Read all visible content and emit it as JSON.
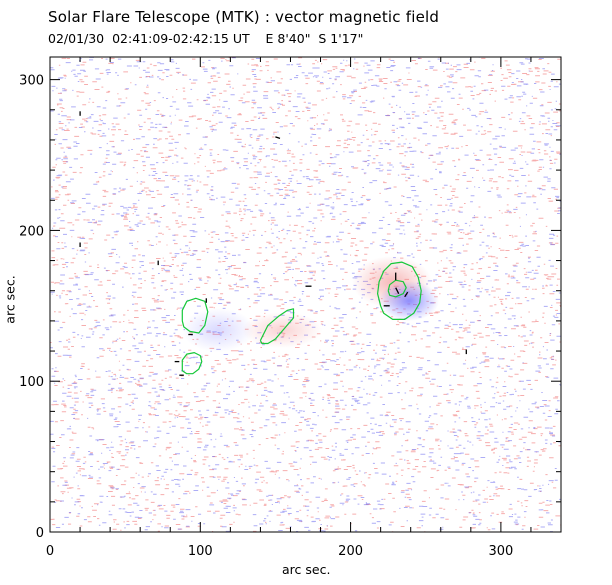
{
  "header": {
    "title": "Solar Flare Telescope (MTK) : vector magnetic field",
    "subtitle": "02/01/30  02:41:09-02:42:15 UT    E 8'40\"  S 1'17\""
  },
  "axes": {
    "xlabel": "arc sec.",
    "ylabel": "arc sec.",
    "xlim": [
      0,
      340
    ],
    "ylim": [
      0,
      315
    ],
    "xticks": [
      0,
      100,
      200,
      300
    ],
    "yticks": [
      0,
      100,
      200,
      300
    ]
  },
  "map": {
    "positive_color": "#ef6a6a",
    "negative_color": "#6a6aef",
    "contour_color": "#16c83a",
    "vector_color": "#000000"
  },
  "contours": [
    {
      "name": "sunspot-ring",
      "points": [
        [
          220,
          150
        ],
        [
          218,
          158
        ],
        [
          219,
          166
        ],
        [
          222,
          173
        ],
        [
          227,
          178
        ],
        [
          234,
          179
        ],
        [
          241,
          176
        ],
        [
          245,
          169
        ],
        [
          247,
          160
        ],
        [
          246,
          152
        ],
        [
          242,
          145
        ],
        [
          236,
          141
        ],
        [
          228,
          141
        ],
        [
          222,
          145
        ],
        [
          220,
          150
        ]
      ]
    },
    {
      "name": "sunspot-inner",
      "points": [
        [
          225,
          160
        ],
        [
          226,
          164
        ],
        [
          230,
          167
        ],
        [
          235,
          166
        ],
        [
          237,
          162
        ],
        [
          235,
          158
        ],
        [
          230,
          156
        ],
        [
          226,
          157
        ],
        [
          225,
          160
        ]
      ]
    },
    {
      "name": "plage-diagonal",
      "points": [
        [
          140,
          127
        ],
        [
          145,
          137
        ],
        [
          152,
          143
        ],
        [
          158,
          147
        ],
        [
          162,
          148
        ],
        [
          162,
          142
        ],
        [
          156,
          135
        ],
        [
          150,
          128
        ],
        [
          145,
          125
        ],
        [
          141,
          125
        ],
        [
          140,
          127
        ]
      ]
    },
    {
      "name": "plage-left-upper",
      "points": [
        [
          88,
          140
        ],
        [
          88,
          147
        ],
        [
          91,
          153
        ],
        [
          97,
          155
        ],
        [
          103,
          153
        ],
        [
          105,
          146
        ],
        [
          103,
          137
        ],
        [
          99,
          132
        ],
        [
          93,
          133
        ],
        [
          89,
          136
        ],
        [
          88,
          140
        ]
      ]
    },
    {
      "name": "plage-left-lower",
      "points": [
        [
          88,
          110
        ],
        [
          88,
          114
        ],
        [
          91,
          118
        ],
        [
          96,
          119
        ],
        [
          100,
          117
        ],
        [
          101,
          113
        ],
        [
          99,
          108
        ],
        [
          95,
          105
        ],
        [
          91,
          105
        ],
        [
          88,
          107
        ],
        [
          88,
          110
        ]
      ]
    }
  ],
  "vectors": [
    {
      "x": 20,
      "y": 276,
      "dx": 0,
      "dy": 3
    },
    {
      "x": 150,
      "y": 262,
      "dx": 3,
      "dy": -1
    },
    {
      "x": 20,
      "y": 189,
      "dx": 0,
      "dy": 3
    },
    {
      "x": 72,
      "y": 177,
      "dx": 0,
      "dy": 3
    },
    {
      "x": 170,
      "y": 163,
      "dx": 4,
      "dy": 0
    },
    {
      "x": 230,
      "y": 167,
      "dx": 0,
      "dy": 5
    },
    {
      "x": 232,
      "y": 158,
      "dx": -2,
      "dy": 4
    },
    {
      "x": 236,
      "y": 156,
      "dx": 2,
      "dy": 3
    },
    {
      "x": 222,
      "y": 150,
      "dx": 4,
      "dy": 0
    },
    {
      "x": 104,
      "y": 152,
      "dx": 0,
      "dy": 3
    },
    {
      "x": 92,
      "y": 131,
      "dx": 3,
      "dy": 0
    },
    {
      "x": 86,
      "y": 113,
      "dx": -3,
      "dy": 0
    },
    {
      "x": 86,
      "y": 104,
      "dx": 3,
      "dy": 0
    },
    {
      "x": 277,
      "y": 118,
      "dx": 0,
      "dy": 3
    }
  ]
}
